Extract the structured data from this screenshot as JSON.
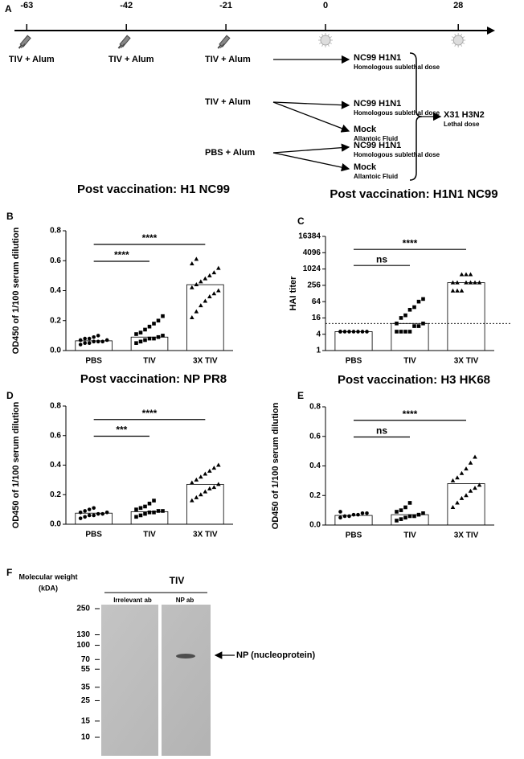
{
  "panel_labels": [
    "A",
    "B",
    "C",
    "D",
    "E",
    "F"
  ],
  "timeline": {
    "days": [
      -63,
      -42,
      -21,
      0,
      28
    ],
    "priming": [
      "TIV + Alum",
      "TIV + Alum"
    ],
    "groups": [
      {
        "vaccine": "TIV + Alum",
        "challenges": [
          {
            "name": "NC99 H1N1",
            "detail": "Homologous sublethal dose"
          }
        ]
      },
      {
        "vaccine": "TIV + Alum",
        "challenges": [
          {
            "name": "NC99 H1N1",
            "detail": "Homologous sublethal dose"
          },
          {
            "name": "Mock",
            "detail": "Allantoic Fluid"
          }
        ]
      },
      {
        "vaccine": "PBS + Alum",
        "challenges": [
          {
            "name": "NC99 H1N1",
            "detail": "Homologous sublethal dose"
          },
          {
            "name": "Mock",
            "detail": "Allantoic Fluid"
          }
        ]
      }
    ],
    "final": {
      "name": "X31 H3N2",
      "detail": "Lethal dose"
    }
  },
  "chart_data": [
    {
      "type": "bar",
      "title": "Post vaccination: H1 NC99",
      "y_label": "OD450 of 1/100 serum dilution",
      "categories": [
        "PBS",
        "TIV",
        "3X TIV"
      ],
      "values": [
        0.065,
        0.09,
        0.44
      ],
      "color": "#ffffff",
      "markers": [
        "circle",
        "square",
        "triangle"
      ],
      "points": [
        [
          0.04,
          0.05,
          0.05,
          0.06,
          0.06,
          0.06,
          0.07,
          0.07,
          0.08,
          0.08,
          0.09,
          0.1
        ],
        [
          0.05,
          0.06,
          0.07,
          0.08,
          0.08,
          0.09,
          0.1,
          0.11,
          0.12,
          0.14,
          0.16,
          0.18,
          0.2,
          0.23
        ],
        [
          0.22,
          0.26,
          0.3,
          0.33,
          0.36,
          0.38,
          0.4,
          0.42,
          0.44,
          0.46,
          0.48,
          0.5,
          0.52,
          0.55,
          0.58,
          0.61
        ]
      ],
      "ylim": [
        0,
        0.8
      ],
      "yticks": [
        {
          "value": 0,
          "label": "0.0"
        },
        0.2,
        0.4,
        0.6,
        0.8
      ],
      "comparisons": [
        {
          "label": "****",
          "from": "PBS",
          "to": "TIV"
        },
        {
          "label": "****",
          "from": "PBS",
          "to": "3X TIV"
        }
      ]
    },
    {
      "type": "bar",
      "title": "Post vaccination: H1N1 NC99",
      "y_label": "HAI titer",
      "log_scale": 2,
      "categories": [
        "PBS",
        "TIV",
        "3X TIV"
      ],
      "values": [
        5,
        10,
        320
      ],
      "color": "#ffffff",
      "markers": [
        "circle",
        "square",
        "triangle"
      ],
      "points": [
        [
          5,
          5,
          5,
          5,
          5,
          5,
          5,
          5
        ],
        [
          5,
          5,
          5,
          5,
          8,
          8,
          10,
          10,
          16,
          20,
          32,
          40,
          64,
          80
        ],
        [
          160,
          160,
          160,
          320,
          320,
          320,
          320,
          320,
          320,
          640,
          640,
          640
        ]
      ],
      "ylim": [
        1,
        16384
      ],
      "yticks": [
        1,
        4,
        16,
        64,
        256,
        1024,
        4096,
        16384
      ],
      "reference_line": 10,
      "comparisons": [
        {
          "label": "ns",
          "from": "PBS",
          "to": "TIV"
        },
        {
          "label": "****",
          "from": "PBS",
          "to": "3X TIV"
        }
      ]
    },
    {
      "type": "bar",
      "title": "Post vaccination: NP PR8",
      "y_label": "OD450 of 1/100 serum dilution",
      "categories": [
        "PBS",
        "TIV",
        "3X TIV"
      ],
      "values": [
        0.075,
        0.085,
        0.27
      ],
      "color": "#ffffff",
      "markers": [
        "circle",
        "square",
        "triangle"
      ],
      "points": [
        [
          0.04,
          0.05,
          0.06,
          0.06,
          0.07,
          0.07,
          0.08,
          0.08,
          0.09,
          0.1,
          0.11
        ],
        [
          0.05,
          0.06,
          0.07,
          0.08,
          0.08,
          0.09,
          0.09,
          0.1,
          0.11,
          0.12,
          0.14,
          0.16
        ],
        [
          0.16,
          0.18,
          0.2,
          0.22,
          0.24,
          0.25,
          0.27,
          0.28,
          0.3,
          0.32,
          0.34,
          0.36,
          0.38,
          0.4
        ]
      ],
      "ylim": [
        0,
        0.8
      ],
      "yticks": [
        {
          "value": 0,
          "label": "0.0"
        },
        0.2,
        0.4,
        0.6,
        0.8
      ],
      "comparisons": [
        {
          "label": "***",
          "from": "PBS",
          "to": "TIV"
        },
        {
          "label": "****",
          "from": "PBS",
          "to": "3X TIV"
        }
      ]
    },
    {
      "type": "bar",
      "title": "Post vaccination: H3 HK68",
      "y_label": "OD450 of 1/100 serum dilution",
      "categories": [
        "PBS",
        "TIV",
        "3X TIV"
      ],
      "values": [
        0.065,
        0.07,
        0.28
      ],
      "color": "#ffffff",
      "markers": [
        "circle",
        "square",
        "triangle"
      ],
      "points": [
        [
          0.05,
          0.06,
          0.06,
          0.07,
          0.07,
          0.08,
          0.08,
          0.09
        ],
        [
          0.03,
          0.04,
          0.05,
          0.06,
          0.06,
          0.07,
          0.08,
          0.09,
          0.1,
          0.12,
          0.15
        ],
        [
          0.12,
          0.15,
          0.18,
          0.2,
          0.23,
          0.25,
          0.27,
          0.3,
          0.32,
          0.35,
          0.38,
          0.42,
          0.46
        ]
      ],
      "ylim": [
        0,
        0.8
      ],
      "yticks": [
        {
          "value": 0,
          "label": "0.0"
        },
        0.2,
        0.4,
        0.6,
        0.8
      ],
      "comparisons": [
        {
          "label": "ns",
          "from": "PBS",
          "to": "TIV"
        },
        {
          "label": "****",
          "from": "PBS",
          "to": "3X TIV"
        }
      ]
    }
  ],
  "blot": {
    "mw_label": [
      "Molecular weight",
      "(kDA)"
    ],
    "title": "TIV",
    "lanes": [
      "Irrelevant ab",
      "NP ab"
    ],
    "markers": [
      250,
      130,
      100,
      70,
      55,
      35,
      25,
      15,
      10
    ],
    "band_label": "NP (nucleoprotein)"
  }
}
